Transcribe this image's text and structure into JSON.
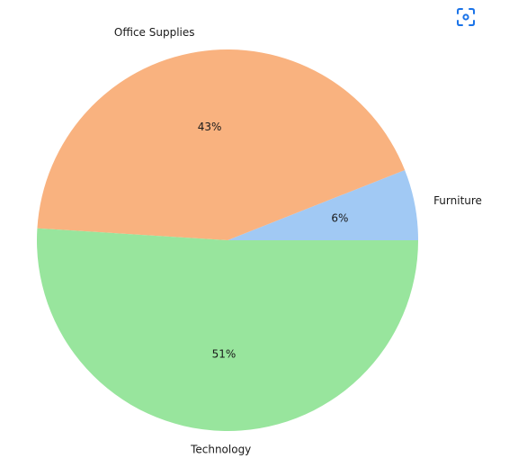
{
  "toolbar": {
    "focus_icon": "focus-mode-icon",
    "icon_color": "#1a73e8"
  },
  "chart_data": {
    "type": "pie",
    "title": "",
    "categories": [
      "Furniture",
      "Office Supplies",
      "Technology"
    ],
    "values": [
      6,
      43,
      51
    ],
    "percent_labels": [
      "6%",
      "43%",
      "51%"
    ],
    "colors": [
      "#a1c9f4",
      "#f9b27f",
      "#98e59d"
    ],
    "start_angle_deg": 0,
    "direction": "counterclockwise",
    "legend": "none"
  }
}
